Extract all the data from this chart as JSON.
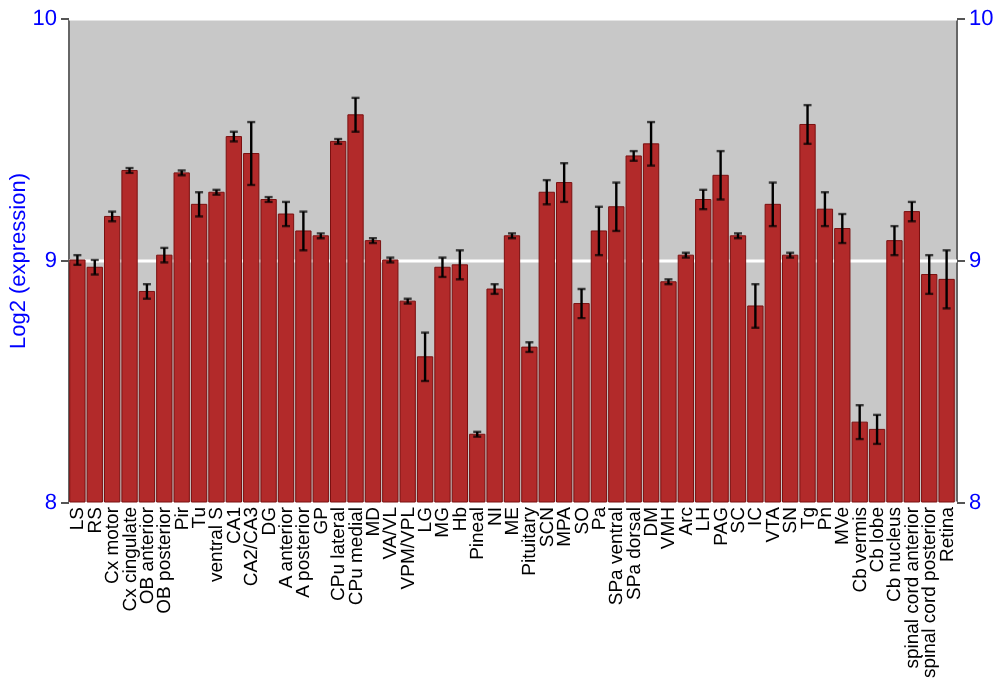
{
  "chart_data": {
    "type": "bar",
    "ylabel": "Log2 (expression)",
    "categories": [
      "LS",
      "RS",
      "Cx motor",
      "Cx cingulate",
      "OB anterior",
      "OB posterior",
      "Pir",
      "Tu",
      "ventral S",
      "CA1",
      "CA2/CA3",
      "DG",
      "A anterior",
      "A posterior",
      "GP",
      "CPu lateral",
      "CPu medial",
      "MD",
      "VA/VL",
      "VPM/VPL",
      "LG",
      "MG",
      "Hb",
      "Pineal",
      "NI",
      "ME",
      "Pituitary",
      "SCN",
      "MPA",
      "SO",
      "Pa",
      "SPa ventral",
      "SPa dorsal",
      "DM",
      "VMH",
      "Arc",
      "LH",
      "PAG",
      "SC",
      "IC",
      "VTA",
      "SN",
      "Tg",
      "Pn",
      "MVe",
      "Cb vermis",
      "Cb lobe",
      "Cb nucleus",
      "spinal cord anterior",
      "spinal cord posterior",
      "Retina"
    ],
    "values": [
      9.0,
      8.97,
      9.18,
      9.37,
      8.87,
      9.02,
      9.36,
      9.23,
      9.28,
      9.51,
      9.44,
      9.25,
      9.19,
      9.12,
      9.1,
      9.49,
      9.6,
      9.08,
      9.0,
      8.83,
      8.6,
      8.97,
      8.98,
      8.28,
      8.88,
      9.1,
      8.64,
      9.28,
      9.32,
      8.82,
      9.12,
      9.22,
      9.43,
      9.48,
      8.91,
      9.02,
      9.25,
      9.35,
      9.1,
      8.81,
      9.23,
      9.02,
      9.56,
      9.21,
      9.13,
      8.33,
      8.3,
      9.08,
      9.2,
      8.94,
      8.92
    ],
    "errors": [
      0.02,
      0.03,
      0.02,
      0.01,
      0.03,
      0.03,
      0.01,
      0.05,
      0.01,
      0.02,
      0.13,
      0.01,
      0.05,
      0.08,
      0.01,
      0.01,
      0.07,
      0.01,
      0.01,
      0.01,
      0.1,
      0.04,
      0.06,
      0.01,
      0.02,
      0.01,
      0.02,
      0.05,
      0.08,
      0.06,
      0.1,
      0.1,
      0.02,
      0.09,
      0.01,
      0.01,
      0.04,
      0.1,
      0.01,
      0.09,
      0.09,
      0.01,
      0.08,
      0.07,
      0.06,
      0.07,
      0.06,
      0.06,
      0.04,
      0.08,
      0.12
    ],
    "color": "#b22a2a",
    "ylim": [
      8,
      10
    ],
    "yticks": [
      8,
      9,
      10
    ],
    "y2lim": [
      8,
      10
    ],
    "y2ticks": [
      8,
      9,
      10
    ],
    "grid": "y"
  }
}
